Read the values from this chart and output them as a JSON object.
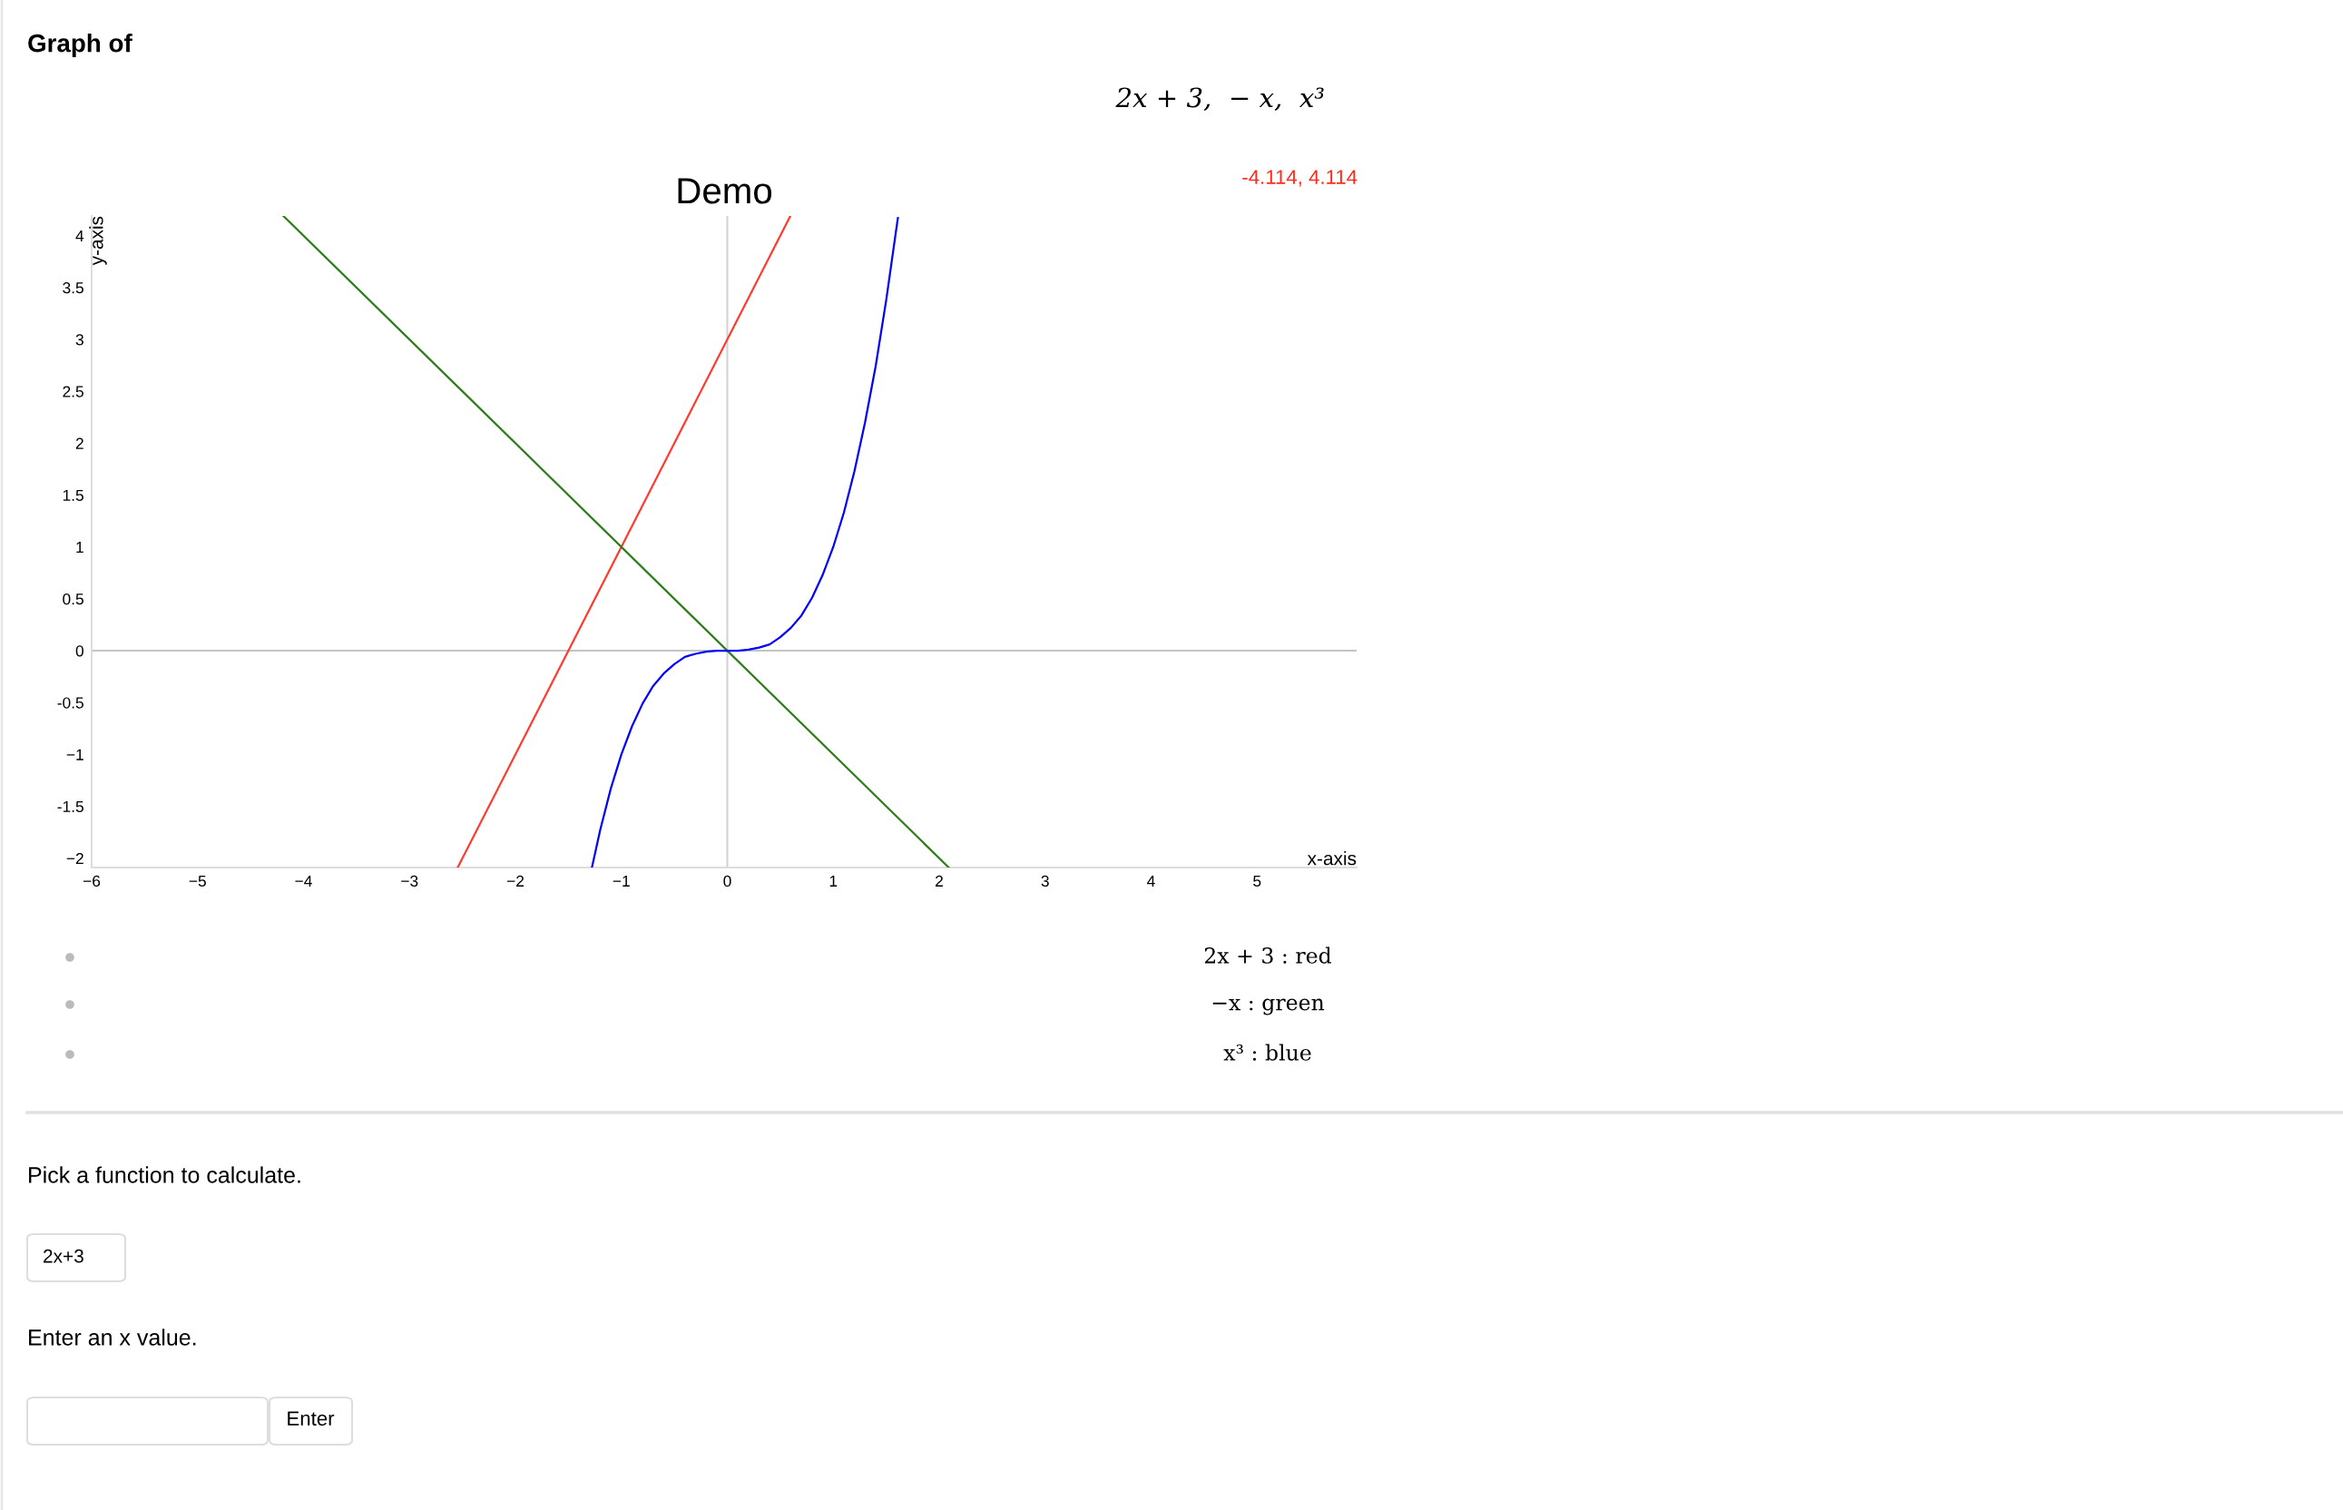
{
  "chart_data": {
    "type": "line",
    "title": "Demo",
    "xlabel": "x-axis",
    "ylabel": "y-axis",
    "annotations": [
      "Graph of",
      "2x + 3,  − x,  x³",
      "-4.114, 4.114",
      "2x + 3 : red",
      "−x : green",
      "x³ : blue",
      "Pick a function to calculate.",
      "2x+3",
      "Enter an x value.",
      "Enter"
    ],
    "series": [
      {
        "color": "#ff3b2f",
        "x": [
          -2.545,
          0.595
        ],
        "values": [
          -2.09,
          4.19
        ]
      },
      {
        "color": "#2e7d1a",
        "x": [
          -4.19,
          2.09
        ],
        "values": [
          4.19,
          -2.09
        ]
      },
      {
        "color": "#0000ff",
        "x": [
          -1.278,
          -1.2,
          -1.1,
          -1,
          -0.9,
          -0.8,
          -0.7,
          -0.6,
          -0.5,
          -0.4,
          -0.3,
          -0.2,
          -0.1,
          0,
          0.1,
          0.2,
          0.3,
          0.4,
          0.5,
          0.6,
          0.7,
          0.8,
          0.9,
          1,
          1.1,
          1.2,
          1.3,
          1.4,
          1.5,
          1.6,
          1.61
        ],
        "values": [
          -2.09,
          -1.73,
          -1.33,
          -1,
          -0.73,
          -0.51,
          -0.34,
          -0.22,
          -0.13,
          -0.06,
          -0.03,
          -0.01,
          0,
          0,
          0,
          0.01,
          0.03,
          0.06,
          0.13,
          0.22,
          0.34,
          0.51,
          0.73,
          1,
          1.33,
          1.73,
          2.2,
          2.74,
          3.38,
          4.1,
          4.17
        ]
      }
    ],
    "xlim": [
      -6,
      5.94
    ],
    "ylim": [
      -2.09,
      4.19
    ],
    "xticks": [
      {
        "value": -6,
        "label": "−6"
      },
      {
        "value": -5,
        "label": "−5"
      },
      {
        "value": -4,
        "label": "−4"
      },
      {
        "value": -3,
        "label": "−3"
      },
      {
        "value": -2,
        "label": "−2"
      },
      {
        "value": -1,
        "label": "−1"
      },
      0,
      1,
      2,
      3,
      4,
      5
    ],
    "yticks": [
      {
        "value": -2,
        "label": "−2"
      },
      -1.5,
      {
        "value": -1,
        "label": "−1"
      },
      -0.5,
      0,
      0.5,
      1,
      1.5,
      2,
      2.5,
      3,
      3.5,
      4
    ],
    "ref_lines": [
      {
        "axis": "x",
        "value": 0,
        "color": "#d2d2d2"
      },
      {
        "axis": "y",
        "value": 0,
        "color": "#c4c4c4"
      }
    ],
    "grid": false,
    "legend": false,
    "marker": "none",
    "line_style": "solid"
  }
}
